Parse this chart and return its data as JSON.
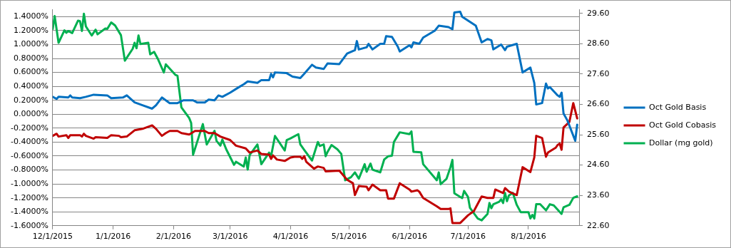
{
  "chart_data": {
    "type": "line",
    "xlim": [
      "2015-12-01",
      "2016-08-27"
    ],
    "xticks": [
      {
        "value": "2015-12-01",
        "label": "12/1/2015"
      },
      {
        "value": "2016-01-01",
        "label": "1/1/2016"
      },
      {
        "value": "2016-02-01",
        "label": "2/1/2016"
      },
      {
        "value": "2016-03-01",
        "label": "3/1/2016"
      },
      {
        "value": "2016-04-01",
        "label": "4/1/2016"
      },
      {
        "value": "2016-05-01",
        "label": "5/1/2016"
      },
      {
        "value": "2016-06-01",
        "label": "6/1/2016"
      },
      {
        "value": "2016-07-01",
        "label": "7/1/2016"
      },
      {
        "value": "2016-08-01",
        "label": "8/1/2016"
      }
    ],
    "ylim": [
      -1.6,
      1.5
    ],
    "yticks": [
      {
        "value": 1.4,
        "label": "1.4000%"
      },
      {
        "value": 1.2,
        "label": "1.2000%"
      },
      {
        "value": 1.0,
        "label": "1.0000%"
      },
      {
        "value": 0.8,
        "label": "0.8000%"
      },
      {
        "value": 0.6,
        "label": "0.6000%"
      },
      {
        "value": 0.4,
        "label": "0.4000%"
      },
      {
        "value": 0.2,
        "label": "0.2000%"
      },
      {
        "value": 0,
        "label": "0.0000%"
      },
      {
        "value": -0.2,
        "label": "-0.2000%"
      },
      {
        "value": -0.4,
        "label": "-0.4000%"
      },
      {
        "value": -0.6,
        "label": "-0.6000%"
      },
      {
        "value": -0.8,
        "label": "-0.8000%"
      },
      {
        "value": -1.0,
        "label": "-1.0000%"
      },
      {
        "value": -1.2,
        "label": "-1.2000%"
      },
      {
        "value": -1.4,
        "label": "-1.4000%"
      },
      {
        "value": -1.6,
        "label": "-1.6000%"
      }
    ],
    "y2lim": [
      22.6,
      29.72
    ],
    "y2ticks": [
      {
        "value": 29.6,
        "label": "29.60"
      },
      {
        "value": 28.6,
        "label": "28.60"
      },
      {
        "value": 27.6,
        "label": "27.60"
      },
      {
        "value": 26.6,
        "label": "26.60"
      },
      {
        "value": 25.6,
        "label": "25.60"
      },
      {
        "value": 24.6,
        "label": "24.60"
      },
      {
        "value": 23.6,
        "label": "23.60"
      },
      {
        "value": 22.6,
        "label": "22.60"
      }
    ],
    "grid": "y",
    "legend": "right",
    "marker": "none",
    "line_style": "solid",
    "series": [
      {
        "name": "Oct Gold Basis",
        "color": "#0070c0",
        "x": [
          "2015-12-01",
          "2015-12-03",
          "2015-12-04",
          "2015-12-09",
          "2015-12-10",
          "2015-12-11",
          "2015-12-15",
          "2015-12-18",
          "2015-12-22",
          "2015-12-29",
          "2015-12-31",
          "2016-01-06",
          "2016-01-08",
          "2016-01-12",
          "2016-01-16",
          "2016-01-21",
          "2016-01-23",
          "2016-01-26",
          "2016-01-30",
          "2016-02-03",
          "2016-02-06",
          "2016-02-11",
          "2016-02-13",
          "2016-02-17",
          "2016-02-19",
          "2016-02-22",
          "2016-02-24",
          "2016-02-26",
          "2016-03-01",
          "2016-03-05",
          "2016-03-08",
          "2016-03-10",
          "2016-03-15",
          "2016-03-17",
          "2016-03-21",
          "2016-03-22",
          "2016-03-23",
          "2016-03-24",
          "2016-03-30",
          "2016-04-02",
          "2016-04-06",
          "2016-04-08",
          "2016-04-12",
          "2016-04-14",
          "2016-04-18",
          "2016-04-20",
          "2016-04-26",
          "2016-04-30",
          "2016-05-04",
          "2016-05-05",
          "2016-05-06",
          "2016-05-10",
          "2016-05-11",
          "2016-05-13",
          "2016-05-17",
          "2016-05-19",
          "2016-05-20",
          "2016-05-23",
          "2016-05-26",
          "2016-05-27",
          "2016-06-01",
          "2016-06-02",
          "2016-06-03",
          "2016-06-06",
          "2016-06-08",
          "2016-06-14",
          "2016-06-16",
          "2016-06-21",
          "2016-06-23",
          "2016-06-24",
          "2016-06-27",
          "2016-06-28",
          "2016-07-05",
          "2016-07-08",
          "2016-07-11",
          "2016-07-13",
          "2016-07-14",
          "2016-07-18",
          "2016-07-20",
          "2016-07-21",
          "2016-07-26",
          "2016-07-29",
          "2016-08-02",
          "2016-08-04",
          "2016-08-05",
          "2016-08-08",
          "2016-08-10",
          "2016-08-11",
          "2016-08-12",
          "2016-08-16",
          "2016-08-17",
          "2016-08-18",
          "2016-08-19",
          "2016-08-21",
          "2016-08-25",
          "2016-08-26"
        ],
        "values": [
          0.25,
          0.22,
          0.25,
          0.24,
          0.27,
          0.24,
          0.23,
          0.25,
          0.28,
          0.27,
          0.23,
          0.24,
          0.27,
          0.17,
          0.13,
          0.08,
          0.13,
          0.24,
          0.16,
          0.16,
          0.2,
          0.2,
          0.17,
          0.17,
          0.21,
          0.2,
          0.27,
          0.25,
          0.31,
          0.38,
          0.43,
          0.47,
          0.45,
          0.49,
          0.49,
          0.58,
          0.53,
          0.6,
          0.59,
          0.54,
          0.52,
          0.58,
          0.71,
          0.67,
          0.65,
          0.73,
          0.72,
          0.87,
          0.92,
          1.05,
          0.93,
          0.96,
          1.01,
          0.93,
          1.01,
          1.01,
          1.12,
          1.11,
          0.97,
          0.9,
          0.99,
          0.96,
          1.03,
          1.01,
          1.1,
          1.2,
          1.27,
          1.25,
          1.22,
          1.46,
          1.47,
          1.4,
          1.27,
          1.03,
          1.08,
          1.06,
          0.93,
          1.0,
          0.92,
          0.97,
          1.01,
          0.6,
          0.67,
          0.45,
          0.14,
          0.16,
          0.44,
          0.37,
          0.39,
          0.27,
          0.25,
          0.31,
          0.01,
          -0.09,
          -0.38,
          -0.15
        ]
      },
      {
        "name": "Oct Gold Cobasis",
        "color": "#c00000",
        "x": [
          "2015-12-01",
          "2015-12-03",
          "2015-12-04",
          "2015-12-08",
          "2015-12-09",
          "2015-12-10",
          "2015-12-15",
          "2015-12-16",
          "2015-12-17",
          "2015-12-18",
          "2015-12-22",
          "2015-12-23",
          "2015-12-29",
          "2015-12-31",
          "2016-01-04",
          "2016-01-05",
          "2016-01-08",
          "2016-01-12",
          "2016-01-16",
          "2016-01-21",
          "2016-01-23",
          "2016-01-26",
          "2016-01-28",
          "2016-01-30",
          "2016-02-03",
          "2016-02-05",
          "2016-02-09",
          "2016-02-12",
          "2016-02-17",
          "2016-02-19",
          "2016-02-22",
          "2016-02-25",
          "2016-03-01",
          "2016-03-04",
          "2016-03-09",
          "2016-03-11",
          "2016-03-15",
          "2016-03-17",
          "2016-03-21",
          "2016-03-22",
          "2016-03-23",
          "2016-03-25",
          "2016-03-29",
          "2016-04-01",
          "2016-04-03",
          "2016-04-06",
          "2016-04-07",
          "2016-04-08",
          "2016-04-09",
          "2016-04-13",
          "2016-04-15",
          "2016-04-18",
          "2016-04-19",
          "2016-04-26",
          "2016-04-30",
          "2016-05-03",
          "2016-05-04",
          "2016-05-06",
          "2016-05-10",
          "2016-05-11",
          "2016-05-13",
          "2016-05-17",
          "2016-05-20",
          "2016-05-21",
          "2016-05-24",
          "2016-05-27",
          "2016-06-01",
          "2016-06-02",
          "2016-06-05",
          "2016-06-06",
          "2016-06-08",
          "2016-06-15",
          "2016-06-17",
          "2016-06-21",
          "2016-06-22",
          "2016-06-23",
          "2016-06-27",
          "2016-07-01",
          "2016-07-04",
          "2016-07-08",
          "2016-07-11",
          "2016-07-14",
          "2016-07-15",
          "2016-07-19",
          "2016-07-20",
          "2016-07-22",
          "2016-07-26",
          "2016-07-29",
          "2016-08-02",
          "2016-08-04",
          "2016-08-05",
          "2016-08-08",
          "2016-08-10",
          "2016-08-11",
          "2016-08-15",
          "2016-08-16",
          "2016-08-17",
          "2016-08-18",
          "2016-08-19",
          "2016-08-22",
          "2016-08-24",
          "2016-08-26"
        ],
        "values": [
          -0.31,
          -0.28,
          -0.32,
          -0.3,
          -0.34,
          -0.3,
          -0.3,
          -0.32,
          -0.28,
          -0.31,
          -0.35,
          -0.33,
          -0.34,
          -0.3,
          -0.31,
          -0.33,
          -0.32,
          -0.23,
          -0.21,
          -0.16,
          -0.21,
          -0.31,
          -0.27,
          -0.24,
          -0.24,
          -0.27,
          -0.29,
          -0.24,
          -0.24,
          -0.27,
          -0.27,
          -0.32,
          -0.37,
          -0.45,
          -0.49,
          -0.55,
          -0.52,
          -0.57,
          -0.58,
          -0.64,
          -0.59,
          -0.65,
          -0.67,
          -0.62,
          -0.61,
          -0.61,
          -0.64,
          -0.6,
          -0.68,
          -0.78,
          -0.75,
          -0.77,
          -0.82,
          -0.81,
          -0.94,
          -0.99,
          -1.16,
          -1.03,
          -1.04,
          -1.09,
          -1.01,
          -1.09,
          -1.09,
          -1.21,
          -1.21,
          -0.99,
          -1.08,
          -1.11,
          -1.09,
          -1.11,
          -1.2,
          -1.32,
          -1.36,
          -1.36,
          -1.35,
          -1.56,
          -1.56,
          -1.45,
          -1.39,
          -1.18,
          -1.2,
          -1.2,
          -1.08,
          -1.13,
          -1.06,
          -1.11,
          -1.16,
          -0.76,
          -0.83,
          -0.62,
          -0.31,
          -0.34,
          -0.61,
          -0.55,
          -0.48,
          -0.44,
          -0.42,
          -0.51,
          -0.19,
          -0.11,
          0.16,
          -0.06
        ]
      },
      {
        "name": "Dollar (mg gold)",
        "color": "#00b050",
        "axis": "y2",
        "x": [
          "2015-12-01",
          "2015-12-02",
          "2015-12-04",
          "2015-12-07",
          "2015-12-08",
          "2015-12-09",
          "2015-12-11",
          "2015-12-14",
          "2015-12-15",
          "2015-12-16",
          "2015-12-17",
          "2015-12-18",
          "2015-12-21",
          "2015-12-23",
          "2015-12-24",
          "2015-12-28",
          "2015-12-29",
          "2015-12-31",
          "2016-01-02",
          "2016-01-05",
          "2016-01-07",
          "2016-01-11",
          "2016-01-12",
          "2016-01-13",
          "2016-01-14",
          "2016-01-15",
          "2016-01-19",
          "2016-01-20",
          "2016-01-22",
          "2016-01-24",
          "2016-01-27",
          "2016-01-28",
          "2016-02-02",
          "2016-02-03",
          "2016-02-05",
          "2016-02-09",
          "2016-02-10",
          "2016-02-11",
          "2016-02-16",
          "2016-02-18",
          "2016-02-22",
          "2016-02-23",
          "2016-02-25",
          "2016-02-26",
          "2016-02-28",
          "2016-03-03",
          "2016-03-04",
          "2016-03-08",
          "2016-03-09",
          "2016-03-10",
          "2016-03-11",
          "2016-03-15",
          "2016-03-17",
          "2016-03-21",
          "2016-03-22",
          "2016-03-24",
          "2016-03-29",
          "2016-03-30",
          "2016-04-01",
          "2016-04-05",
          "2016-04-06",
          "2016-04-08",
          "2016-04-12",
          "2016-04-15",
          "2016-04-16",
          "2016-04-18",
          "2016-04-19",
          "2016-04-20",
          "2016-04-22",
          "2016-04-25",
          "2016-04-27",
          "2016-04-29",
          "2016-05-02",
          "2016-05-04",
          "2016-05-06",
          "2016-05-09",
          "2016-05-10",
          "2016-05-12",
          "2016-05-13",
          "2016-05-17",
          "2016-05-19",
          "2016-05-21",
          "2016-05-23",
          "2016-05-24",
          "2016-05-27",
          "2016-06-01",
          "2016-06-02",
          "2016-06-03",
          "2016-06-07",
          "2016-06-08",
          "2016-06-15",
          "2016-06-16",
          "2016-06-17",
          "2016-06-20",
          "2016-06-22",
          "2016-06-23",
          "2016-06-24",
          "2016-06-28",
          "2016-06-29",
          "2016-07-01",
          "2016-07-02",
          "2016-07-06",
          "2016-07-08",
          "2016-07-11",
          "2016-07-12",
          "2016-07-13",
          "2016-07-14",
          "2016-07-17",
          "2016-07-18",
          "2016-07-19",
          "2016-07-20",
          "2016-07-21",
          "2016-07-22",
          "2016-07-24",
          "2016-07-26",
          "2016-07-28",
          "2016-08-01",
          "2016-08-02",
          "2016-08-03",
          "2016-08-04",
          "2016-08-05",
          "2016-08-07",
          "2016-08-10",
          "2016-08-12",
          "2016-08-14",
          "2016-08-18",
          "2016-08-19",
          "2016-08-22",
          "2016-08-24",
          "2016-08-26"
        ],
        "values": [
          29.09,
          29.51,
          28.63,
          29.04,
          28.96,
          29.02,
          28.95,
          29.36,
          29.34,
          29.02,
          29.59,
          29.17,
          28.87,
          29.06,
          28.91,
          29.1,
          29.09,
          29.3,
          29.2,
          28.88,
          28.04,
          28.43,
          28.63,
          28.45,
          28.87,
          28.59,
          28.63,
          28.25,
          28.33,
          28.09,
          27.65,
          27.92,
          27.57,
          27.54,
          26.5,
          26.15,
          25.99,
          24.94,
          25.95,
          25.28,
          25.73,
          25.4,
          25.24,
          25.44,
          25.12,
          24.61,
          24.71,
          24.55,
          24.85,
          24.45,
          24.93,
          25.28,
          24.63,
          25.01,
          24.89,
          25.56,
          25.08,
          25.42,
          25.48,
          25.62,
          25.28,
          25.1,
          24.75,
          25.36,
          25.23,
          25.28,
          24.89,
          25.04,
          25.26,
          25.12,
          24.97,
          24.1,
          24.2,
          24.36,
          24.15,
          24.63,
          24.38,
          24.65,
          24.45,
          24.36,
          24.78,
          24.89,
          24.91,
          25.36,
          25.68,
          25.62,
          25.71,
          25.04,
          25.02,
          24.63,
          24.1,
          24.36,
          23.97,
          24.15,
          24.53,
          24.77,
          23.67,
          23.51,
          23.75,
          23.55,
          23.19,
          22.84,
          22.78,
          22.99,
          23.35,
          23.18,
          23.31,
          23.39,
          23.47,
          23.35,
          23.68,
          23.41,
          23.6,
          23.68,
          23.29,
          23.05,
          23.05,
          22.84,
          22.96,
          22.84,
          23.31,
          23.31,
          23.11,
          23.31,
          23.27,
          22.99,
          23.21,
          23.29,
          23.52,
          23.57
        ]
      }
    ]
  }
}
